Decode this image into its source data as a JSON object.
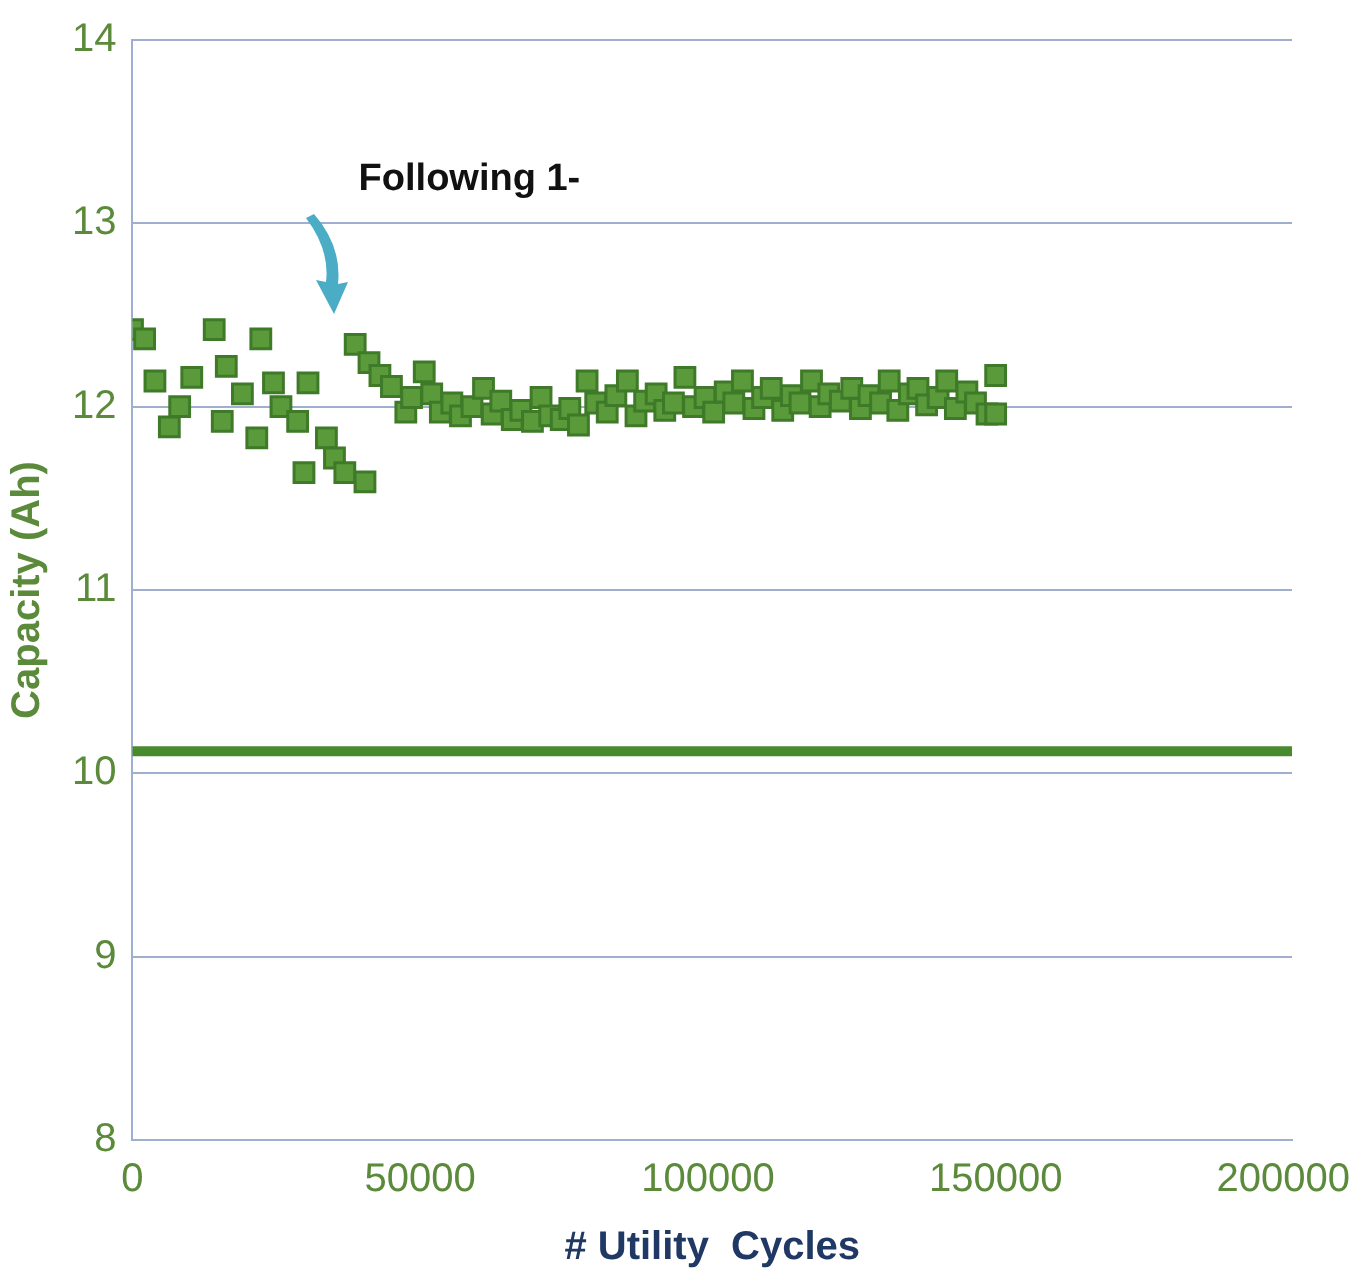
{
  "chart_data": {
    "type": "scatter",
    "xlabel": "# Utility  Cycles",
    "ylabel": "Capacity (Ah)",
    "series": [
      {
        "color": "#5a9a3a",
        "x": [
          0,
          2100,
          3900,
          6400,
          8200,
          10300,
          14200,
          15600,
          16300,
          19100,
          21600,
          22300,
          24500,
          25800,
          28700,
          29800,
          30500,
          33700,
          35100,
          36900,
          40400,
          38700,
          41100,
          43000,
          45000,
          47500,
          48500,
          50700,
          52000,
          53500,
          55500,
          57000,
          59000,
          61000,
          62500,
          64000,
          66000,
          67500,
          69500,
          71000,
          72500,
          74500,
          76000,
          77500,
          79000,
          80500,
          82500,
          84000,
          86000,
          87500,
          89000,
          91000,
          92500,
          94000,
          96000,
          97500,
          99500,
          101000,
          103000,
          104500,
          106000,
          108000,
          109500,
          111000,
          113000,
          114500,
          116000,
          118000,
          119500,
          121000,
          123000,
          125000,
          126500,
          128000,
          130000,
          131500,
          133000,
          135000,
          136500,
          138000,
          140000,
          141500,
          143000,
          145000,
          146500,
          148500,
          150000,
          150000
        ],
        "values": [
          12.42,
          12.37,
          12.14,
          11.89,
          12.0,
          12.16,
          12.42,
          11.92,
          12.22,
          12.07,
          11.83,
          12.37,
          12.13,
          12.0,
          11.92,
          11.64,
          12.13,
          11.83,
          11.72,
          11.64,
          11.59,
          12.34,
          12.24,
          12.17,
          12.11,
          11.97,
          12.05,
          12.19,
          12.07,
          11.97,
          12.02,
          11.95,
          12.0,
          12.1,
          11.96,
          12.03,
          11.93,
          11.98,
          11.92,
          12.05,
          11.95,
          11.93,
          11.99,
          11.9,
          12.14,
          12.02,
          11.97,
          12.06,
          12.14,
          11.95,
          12.03,
          12.07,
          11.98,
          12.02,
          12.16,
          12.0,
          12.05,
          11.97,
          12.08,
          12.02,
          12.14,
          11.99,
          12.05,
          12.1,
          11.98,
          12.06,
          12.02,
          12.14,
          12.0,
          12.07,
          12.03,
          12.1,
          11.99,
          12.06,
          12.02,
          12.14,
          11.98,
          12.07,
          12.1,
          12.01,
          12.05,
          12.14,
          11.99,
          12.08,
          12.02,
          11.96,
          12.17,
          11.96
        ]
      }
    ],
    "marker": "square",
    "xlim": [
      0,
      201500
    ],
    "xticks": [
      0,
      50000,
      100000,
      150000,
      200000
    ],
    "ylim": [
      8,
      14
    ],
    "yticks": [
      8,
      9,
      10,
      11,
      12,
      13,
      14
    ],
    "grid": "y",
    "ref_lines": [
      {
        "axis": "y",
        "value": 10.12,
        "color": "#4a8a2f"
      }
    ],
    "annotations": [
      "Following 1-"
    ]
  }
}
